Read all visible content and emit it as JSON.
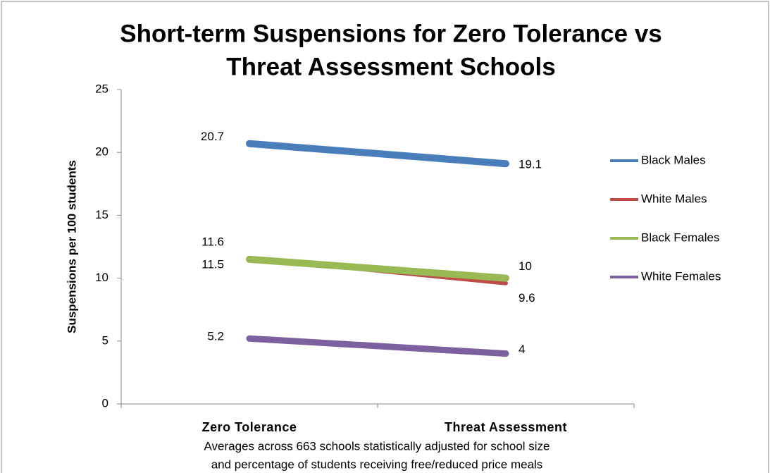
{
  "chart_data": {
    "type": "line",
    "title": [
      "Short-term Suspensions for Zero Tolerance vs",
      "Threat Assessment Schools"
    ],
    "y_label": "Suspensions per 100 students",
    "categories": [
      "Zero Tolerance",
      "Threat Assessment"
    ],
    "series": [
      {
        "name": "Black Males",
        "color": "#4a7ebb",
        "values": [
          20.7,
          19.1
        ]
      },
      {
        "name": "White Males",
        "color": "#be4b48",
        "values": [
          11.6,
          9.6
        ]
      },
      {
        "name": "Black Females",
        "color": "#98b954",
        "values": [
          11.5,
          10
        ]
      },
      {
        "name": "White Females",
        "color": "#7d60a0",
        "values": [
          5.2,
          4
        ]
      }
    ],
    "ylim": [
      0,
      25
    ],
    "yticks": [
      0,
      5,
      10,
      15,
      20,
      25
    ],
    "legend": "right",
    "note": [
      "Averages across 663 schools statistically adjusted for school size",
      "and percentage of students receiving free/reduced price meals"
    ]
  }
}
